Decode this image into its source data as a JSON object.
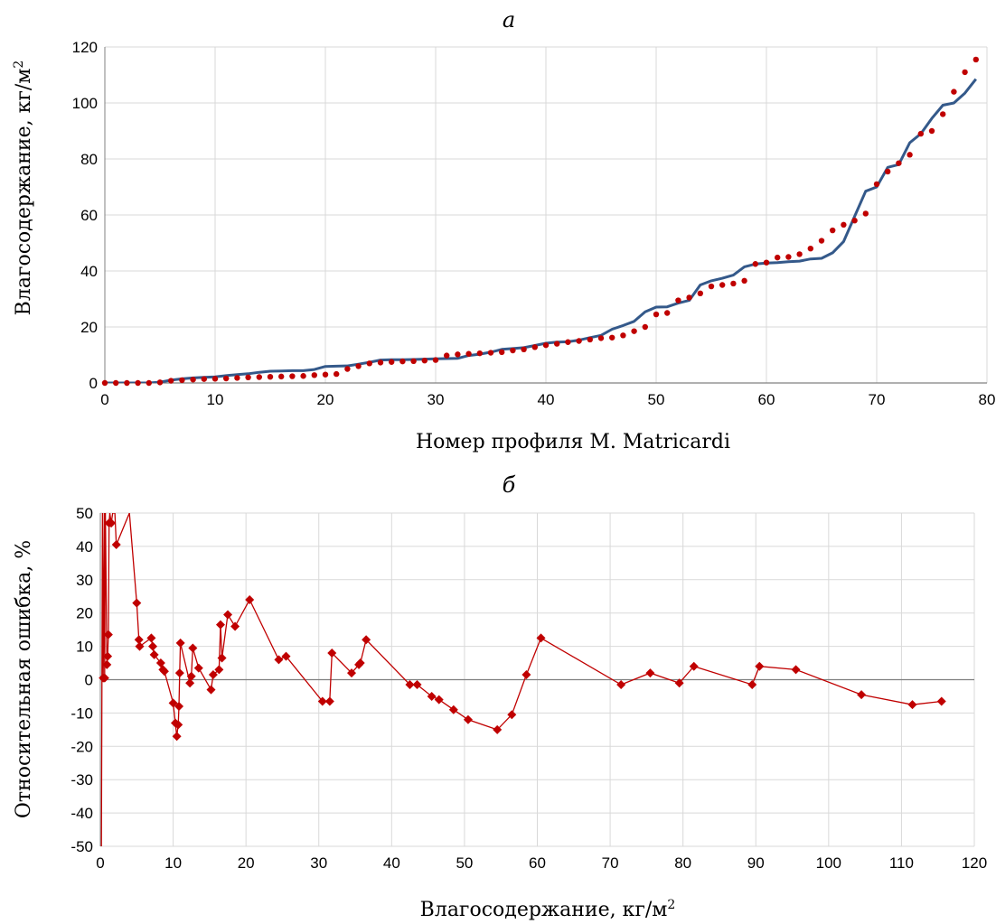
{
  "chart_data": [
    {
      "type": "line",
      "panel_label": "а",
      "xlabel": "Номер профиля M. Matricardi",
      "ylabel": "Влагосодержание, кг/м",
      "ylabel_sup": "2",
      "xlim": [
        0,
        80
      ],
      "ylim": [
        0,
        120
      ],
      "xticks": [
        "0",
        "10",
        "20",
        "30",
        "40",
        "50",
        "60",
        "70",
        "80"
      ],
      "yticks": [
        "0",
        "20",
        "40",
        "60",
        "80",
        "100",
        "120"
      ],
      "grid": true,
      "colors": {
        "line": "#34598a",
        "dots": "#c00000"
      },
      "series": [
        {
          "style": "line",
          "x": [
            0,
            1,
            2,
            3,
            4,
            5,
            6,
            7,
            8,
            9,
            10,
            11,
            12,
            13,
            14,
            15,
            16,
            17,
            18,
            19,
            20,
            21,
            22,
            23,
            24,
            25,
            26,
            27,
            28,
            29,
            30,
            31,
            32,
            33,
            34,
            35,
            36,
            37,
            38,
            39,
            40,
            41,
            42,
            43,
            44,
            45,
            46,
            47,
            48,
            49,
            50,
            51,
            52,
            53,
            54,
            55,
            56,
            57,
            58,
            59,
            60,
            61,
            62,
            63,
            64,
            65,
            66,
            67,
            68,
            69,
            70,
            71,
            72,
            73,
            74,
            75,
            76,
            77,
            78,
            79
          ],
          "y": [
            0,
            0,
            0,
            0,
            0,
            0.3,
            1,
            1.5,
            1.8,
            2,
            2.2,
            2.6,
            3,
            3.3,
            3.8,
            4.2,
            4.3,
            4.4,
            4.4,
            4.8,
            5.9,
            6,
            6.1,
            6.7,
            7.4,
            8.2,
            8.3,
            8.3,
            8.4,
            8.5,
            8.6,
            8.7,
            8.8,
            9.8,
            10.3,
            11,
            12,
            12.3,
            12.6,
            13.4,
            14.2,
            14.6,
            14.7,
            15.3,
            16.2,
            17,
            19.2,
            20.5,
            22,
            25.4,
            27.1,
            27.2,
            28.5,
            29.5,
            35,
            36.5,
            37.4,
            38.5,
            41.5,
            42.5,
            42.8,
            43,
            43.3,
            43.5,
            44.3,
            44.5,
            46.5,
            50.5,
            59.5,
            68.5,
            70,
            77,
            78,
            85.8,
            89,
            94.5,
            99.2,
            100,
            103.5,
            108.5
          ]
        },
        {
          "style": "dots",
          "x": [
            0,
            1,
            2,
            3,
            4,
            5,
            6,
            7,
            8,
            9,
            10,
            11,
            12,
            13,
            14,
            15,
            16,
            17,
            18,
            19,
            20,
            21,
            22,
            23,
            24,
            25,
            26,
            27,
            28,
            29,
            30,
            31,
            32,
            33,
            34,
            35,
            36,
            37,
            38,
            39,
            40,
            41,
            42,
            43,
            44,
            45,
            46,
            47,
            48,
            49,
            50,
            51,
            52,
            53,
            54,
            55,
            56,
            57,
            58,
            59,
            60,
            61,
            62,
            63,
            64,
            65,
            66,
            67,
            68,
            69,
            70,
            71,
            72,
            73,
            74,
            75,
            76,
            77,
            78,
            79
          ],
          "y": [
            0,
            0,
            0,
            0,
            0,
            0.2,
            0.8,
            1,
            1.2,
            1.4,
            1.5,
            1.6,
            1.8,
            2,
            2.1,
            2.2,
            2.3,
            2.4,
            2.5,
            2.8,
            3,
            3.2,
            5,
            6,
            7,
            7.3,
            7.5,
            7.7,
            7.8,
            8,
            8.2,
            9.8,
            10.2,
            10.4,
            10.6,
            10.8,
            11,
            11.6,
            12,
            12.8,
            13.5,
            14,
            14.6,
            15,
            15.5,
            16,
            16.2,
            17,
            18.5,
            20,
            24.5,
            25,
            29.5,
            30.5,
            32,
            34.5,
            35,
            35.5,
            36.5,
            42.5,
            43,
            44.8,
            45,
            46,
            48,
            50.8,
            54.5,
            56.5,
            58,
            60.5,
            71,
            75.5,
            78.5,
            81.5,
            89,
            90,
            96,
            104,
            111,
            115.5
          ]
        }
      ]
    },
    {
      "type": "line",
      "panel_label": "б",
      "xlabel": "Влагосодержание, кг/м",
      "xlabel_sup": "2",
      "ylabel": "Относительная ошибка, %",
      "xlim": [
        0,
        120
      ],
      "ylim": [
        -50,
        50
      ],
      "xticks": [
        "0",
        "10",
        "20",
        "30",
        "40",
        "50",
        "60",
        "70",
        "80",
        "90",
        "100",
        "110",
        "120"
      ],
      "yticks": [
        "-50",
        "-40",
        "-30",
        "-20",
        "-10",
        "0",
        "10",
        "20",
        "30",
        "40",
        "50"
      ],
      "grid": true,
      "colors": {
        "line": "#c00000",
        "zero_line": "#7f7f7f"
      },
      "series": [
        {
          "style": "line-diamond",
          "x": [
            0.15,
            0.3,
            0.4,
            0.55,
            0.6,
            0.7,
            0.9,
            1.0,
            1.1,
            1.2,
            1.3,
            1.5,
            1.7,
            2.0,
            2.2,
            4.0,
            5.0,
            5.3,
            5.4,
            7.0,
            7.2,
            7.4,
            8.3,
            8.6,
            8.8,
            10.0,
            10.3,
            10.5,
            10.7,
            10.8,
            10.9,
            11.0,
            12.3,
            12.5,
            12.7,
            13.5,
            15.2,
            15.5,
            16.3,
            16.5,
            16.7,
            17.5,
            18.5,
            20.5,
            24.5,
            25.5,
            30.5,
            31.5,
            31.8,
            34.5,
            35.5,
            35.7,
            36.5,
            42.5,
            43.5,
            45.5,
            46.5,
            48.5,
            50.5,
            54.5,
            56.5,
            58.5,
            60.5,
            71.5,
            75.5,
            79.5,
            81.5,
            89.5,
            90.5,
            95.5,
            104.5,
            111.5,
            115.5
          ],
          "y": [
            -50,
            50,
            0.5,
            50,
            0.5,
            50,
            4.5,
            7,
            13.5,
            47,
            50,
            47,
            50,
            50,
            40.5,
            50,
            23,
            12,
            10,
            12.5,
            10,
            7.5,
            5,
            3,
            2.5,
            -7,
            -13,
            -17,
            -13.5,
            -8,
            2,
            11,
            -1,
            1,
            9.5,
            3.5,
            -3,
            1.5,
            3,
            16.5,
            6.5,
            19.5,
            16,
            24,
            6,
            7,
            -6.5,
            -6.5,
            8,
            2,
            4.5,
            5,
            12,
            -1.5,
            -1.5,
            -5,
            -6,
            -9,
            -12,
            -15,
            -10.5,
            1.5,
            12.5,
            -1.5,
            2,
            -1,
            4,
            -1.5,
            4,
            3,
            -4.5,
            -7.5,
            -6.5
          ],
          "markers": [
            false,
            false,
            true,
            false,
            true,
            false,
            true,
            true,
            true,
            true,
            false,
            true,
            false,
            false,
            true,
            false,
            true,
            true,
            true,
            true,
            true,
            true,
            true,
            true,
            true,
            true,
            true,
            true,
            true,
            true,
            true,
            true,
            true,
            true,
            true,
            true,
            true,
            true,
            true,
            true,
            true,
            true,
            true,
            true,
            true,
            true,
            true,
            true,
            true,
            true,
            true,
            true,
            true,
            true,
            true,
            true,
            true,
            true,
            true,
            true,
            true,
            true,
            true,
            true,
            true,
            true,
            true,
            true,
            true,
            true,
            true,
            true,
            true
          ]
        }
      ]
    }
  ]
}
